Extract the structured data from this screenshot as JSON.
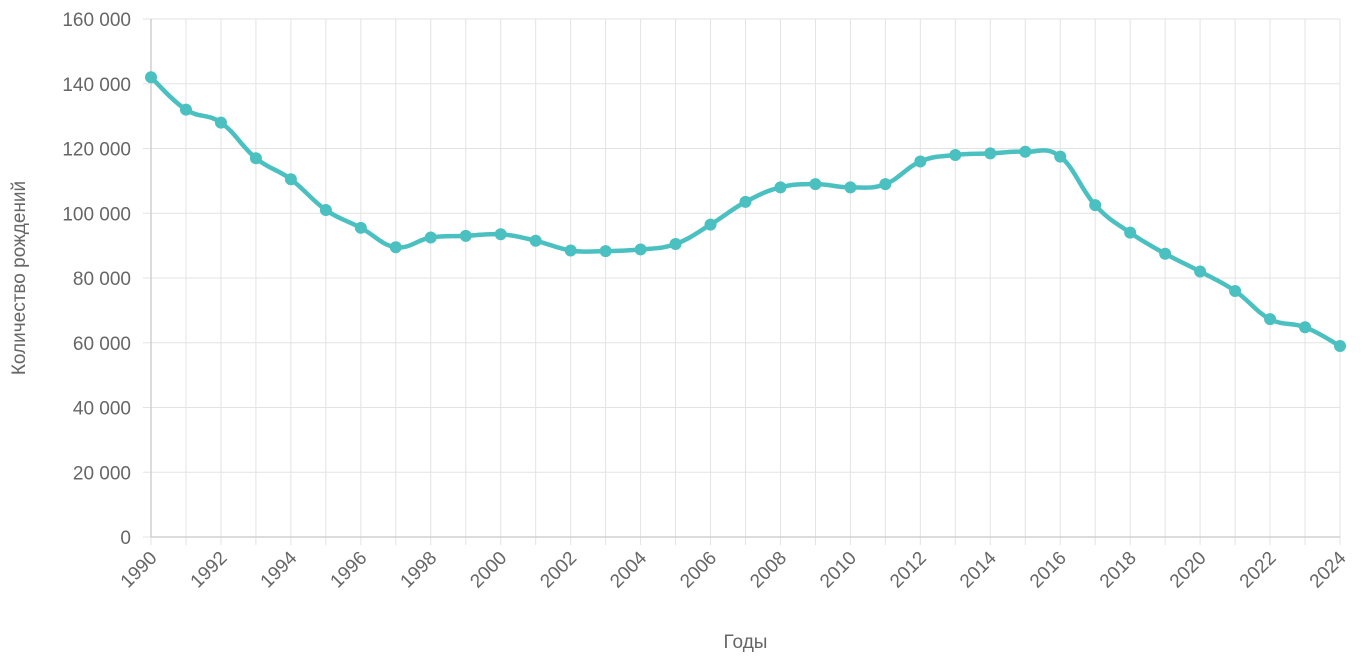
{
  "chart_data": {
    "type": "line",
    "title": "",
    "xlabel": "Годы",
    "ylabel": "Количество рождений",
    "x": [
      1990,
      1991,
      1992,
      1993,
      1994,
      1995,
      1996,
      1997,
      1998,
      1999,
      2000,
      2001,
      2002,
      2003,
      2004,
      2005,
      2006,
      2007,
      2008,
      2009,
      2010,
      2011,
      2012,
      2013,
      2014,
      2015,
      2016,
      2017,
      2018,
      2019,
      2020,
      2021,
      2022,
      2023,
      2024
    ],
    "x_tick_labels": [
      "1990",
      "1992",
      "1994",
      "1996",
      "1998",
      "2000",
      "2002",
      "2004",
      "2006",
      "2008",
      "2010",
      "2012",
      "2014",
      "2016",
      "2018",
      "2020",
      "2022",
      "2024"
    ],
    "series": [
      {
        "color": "#4bc0c0",
        "values": [
          142000,
          132000,
          128000,
          117000,
          110500,
          101000,
          95500,
          89500,
          92500,
          93000,
          93500,
          91500,
          88500,
          88300,
          88800,
          90500,
          96500,
          103500,
          108000,
          109000,
          108000,
          109000,
          116000,
          118000,
          118500,
          119000,
          117500,
          102500,
          94000,
          87500,
          82000,
          76000,
          67300,
          64800,
          59000
        ]
      }
    ],
    "ylim": [
      0,
      160000
    ],
    "y_ticks": [
      0,
      20000,
      40000,
      60000,
      80000,
      100000,
      120000,
      140000,
      160000
    ],
    "y_tick_labels": [
      "0",
      "20 000",
      "40 000",
      "60 000",
      "80 000",
      "100 000",
      "120 000",
      "140 000",
      "160 000"
    ],
    "grid": true,
    "legend": "none"
  }
}
